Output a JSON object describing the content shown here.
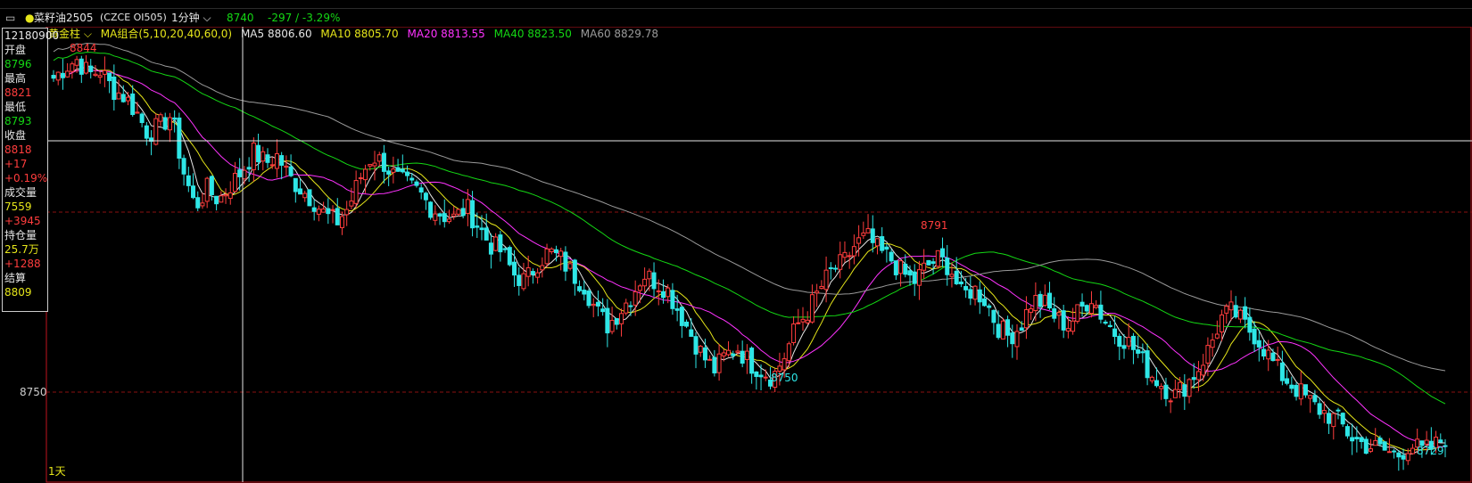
{
  "header": {
    "symbol_name": "菜籽油2505",
    "symbol_code": "(CZCE OI505)",
    "interval": "1分钟",
    "last_price": "8740",
    "change": "-297 / -3.29%"
  },
  "indicators": {
    "selector": "黄金柱",
    "ma_group": "MA组合(5,10,20,40,60,0)",
    "items": [
      {
        "label": "MA5 8806.60",
        "color": "#e6e6e6"
      },
      {
        "label": "MA10 8805.70",
        "color": "#e6e61a"
      },
      {
        "label": "MA20 8813.55",
        "color": "#ff33ff"
      },
      {
        "label": "MA40 8823.50",
        "color": "#14d814"
      },
      {
        "label": "MA60 8829.78",
        "color": "#9a9a9a"
      }
    ]
  },
  "infobox": {
    "time": "12180900",
    "open_label": "开盘",
    "open": "8796",
    "high_label": "最高",
    "high": "8821",
    "low_label": "最低",
    "low": "8793",
    "close_label": "收盘",
    "close": "8818",
    "chg": "+17",
    "chg_pct": "+0.19%",
    "vol_label": "成交量",
    "vol": "7559",
    "vol_chg": "+3945",
    "oi_label": "持仓量",
    "oi": "25.7万",
    "oi_chg": "+1288",
    "settle_label": "结算",
    "settle": "8809"
  },
  "period_label": "1天",
  "colors": {
    "up": "#ff3d3d",
    "down": "#2ee6e6",
    "ma5": "#e6e6e6",
    "ma10": "#e6e61a",
    "ma20": "#ff33ff",
    "ma40": "#14d814",
    "ma60": "#9a9a9a"
  },
  "chart_data": {
    "type": "candlestick",
    "price_range": [
      8726,
      8850
    ],
    "y_ticks": [
      8750
    ],
    "annotations": [
      {
        "label": "8844",
        "value": 8844
      },
      {
        "label": "8791",
        "value": 8791
      },
      {
        "label": "8750",
        "value": 8750
      },
      {
        "label": "8729",
        "value": 8729
      }
    ],
    "crosshair_price": 8818,
    "close_path": [
      8835,
      8838,
      8840,
      8836,
      8837,
      8832,
      8830,
      8826,
      8820,
      8822,
      8825,
      8810,
      8800,
      8805,
      8802,
      8806,
      8810,
      8815,
      8812,
      8814,
      8808,
      8805,
      8802,
      8798,
      8796,
      8800,
      8808,
      8814,
      8812,
      8808,
      8806,
      8804,
      8800,
      8798,
      8797,
      8800,
      8795,
      8790,
      8788,
      8782,
      8780,
      8785,
      8788,
      8786,
      8782,
      8779,
      8772,
      8768,
      8772,
      8776,
      8782,
      8780,
      8778,
      8772,
      8766,
      8760,
      8756,
      8760,
      8762,
      8758,
      8756,
      8754,
      8760,
      8768,
      8772,
      8778,
      8783,
      8785,
      8790,
      8792,
      8788,
      8786,
      8782,
      8780,
      8784,
      8786,
      8784,
      8776,
      8778,
      8775,
      8768,
      8765,
      8768,
      8775,
      8774,
      8770,
      8768,
      8772,
      8776,
      8770,
      8766,
      8764,
      8760,
      8755,
      8752,
      8749,
      8752,
      8756,
      8762,
      8770,
      8772,
      8768,
      8765,
      8760,
      8755,
      8752,
      8749,
      8746,
      8744,
      8742,
      8738,
      8736,
      8735,
      8734,
      8733,
      8736,
      8734,
      8735,
      8738
    ],
    "y_axis_label": ""
  }
}
